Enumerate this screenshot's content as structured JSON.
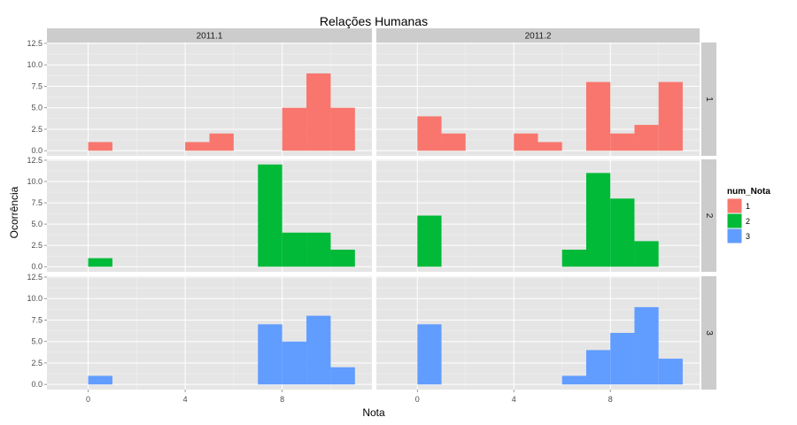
{
  "chart_data": {
    "type": "bar",
    "title": "Relações Humanas",
    "xlabel": "Nota",
    "ylabel": "Ocorrência",
    "col_facets": [
      "2011.1",
      "2011.2"
    ],
    "row_facets": [
      "1",
      "2",
      "3"
    ],
    "bin_width": 1,
    "x_ticks": [
      "0",
      "4",
      "8"
    ],
    "x_tick_values": [
      0,
      4,
      8
    ],
    "xlim": [
      -1.7,
      11.7
    ],
    "y_ticks": [
      "0.0",
      "2.5",
      "5.0",
      "7.5",
      "10.0",
      "12.5"
    ],
    "y_tick_values": [
      0,
      2.5,
      5,
      7.5,
      10,
      12.5
    ],
    "ylim": [
      -0.6,
      12.6
    ],
    "grid": true,
    "legend": {
      "title": "num_Nota",
      "position": "right",
      "entries": [
        {
          "label": "1",
          "color": "#F8766D"
        },
        {
          "label": "2",
          "color": "#00BA38"
        },
        {
          "label": "3",
          "color": "#619CFF"
        }
      ]
    },
    "panels": [
      {
        "col": "2011.1",
        "row": "1",
        "bars": [
          {
            "x_start": 0,
            "count": 1
          },
          {
            "x_start": 4,
            "count": 1
          },
          {
            "x_start": 5,
            "count": 2
          },
          {
            "x_start": 8,
            "count": 5
          },
          {
            "x_start": 9,
            "count": 9
          },
          {
            "x_start": 10,
            "count": 5
          }
        ]
      },
      {
        "col": "2011.2",
        "row": "1",
        "bars": [
          {
            "x_start": 0,
            "count": 4
          },
          {
            "x_start": 1,
            "count": 2
          },
          {
            "x_start": 4,
            "count": 2
          },
          {
            "x_start": 5,
            "count": 1
          },
          {
            "x_start": 7,
            "count": 8
          },
          {
            "x_start": 8,
            "count": 2
          },
          {
            "x_start": 9,
            "count": 3
          },
          {
            "x_start": 10,
            "count": 8
          }
        ]
      },
      {
        "col": "2011.1",
        "row": "2",
        "bars": [
          {
            "x_start": 0,
            "count": 1
          },
          {
            "x_start": 7,
            "count": 12
          },
          {
            "x_start": 8,
            "count": 4
          },
          {
            "x_start": 9,
            "count": 4
          },
          {
            "x_start": 10,
            "count": 2
          }
        ]
      },
      {
        "col": "2011.2",
        "row": "2",
        "bars": [
          {
            "x_start": 0,
            "count": 6
          },
          {
            "x_start": 6,
            "count": 2
          },
          {
            "x_start": 7,
            "count": 11
          },
          {
            "x_start": 8,
            "count": 8
          },
          {
            "x_start": 9,
            "count": 3
          }
        ]
      },
      {
        "col": "2011.1",
        "row": "3",
        "bars": [
          {
            "x_start": 0,
            "count": 1
          },
          {
            "x_start": 7,
            "count": 7
          },
          {
            "x_start": 8,
            "count": 5
          },
          {
            "x_start": 9,
            "count": 8
          },
          {
            "x_start": 10,
            "count": 2
          }
        ]
      },
      {
        "col": "2011.2",
        "row": "3",
        "bars": [
          {
            "x_start": 0,
            "count": 7
          },
          {
            "x_start": 6,
            "count": 1
          },
          {
            "x_start": 7,
            "count": 4
          },
          {
            "x_start": 8,
            "count": 6
          },
          {
            "x_start": 9,
            "count": 9
          },
          {
            "x_start": 10,
            "count": 3
          }
        ]
      }
    ]
  }
}
